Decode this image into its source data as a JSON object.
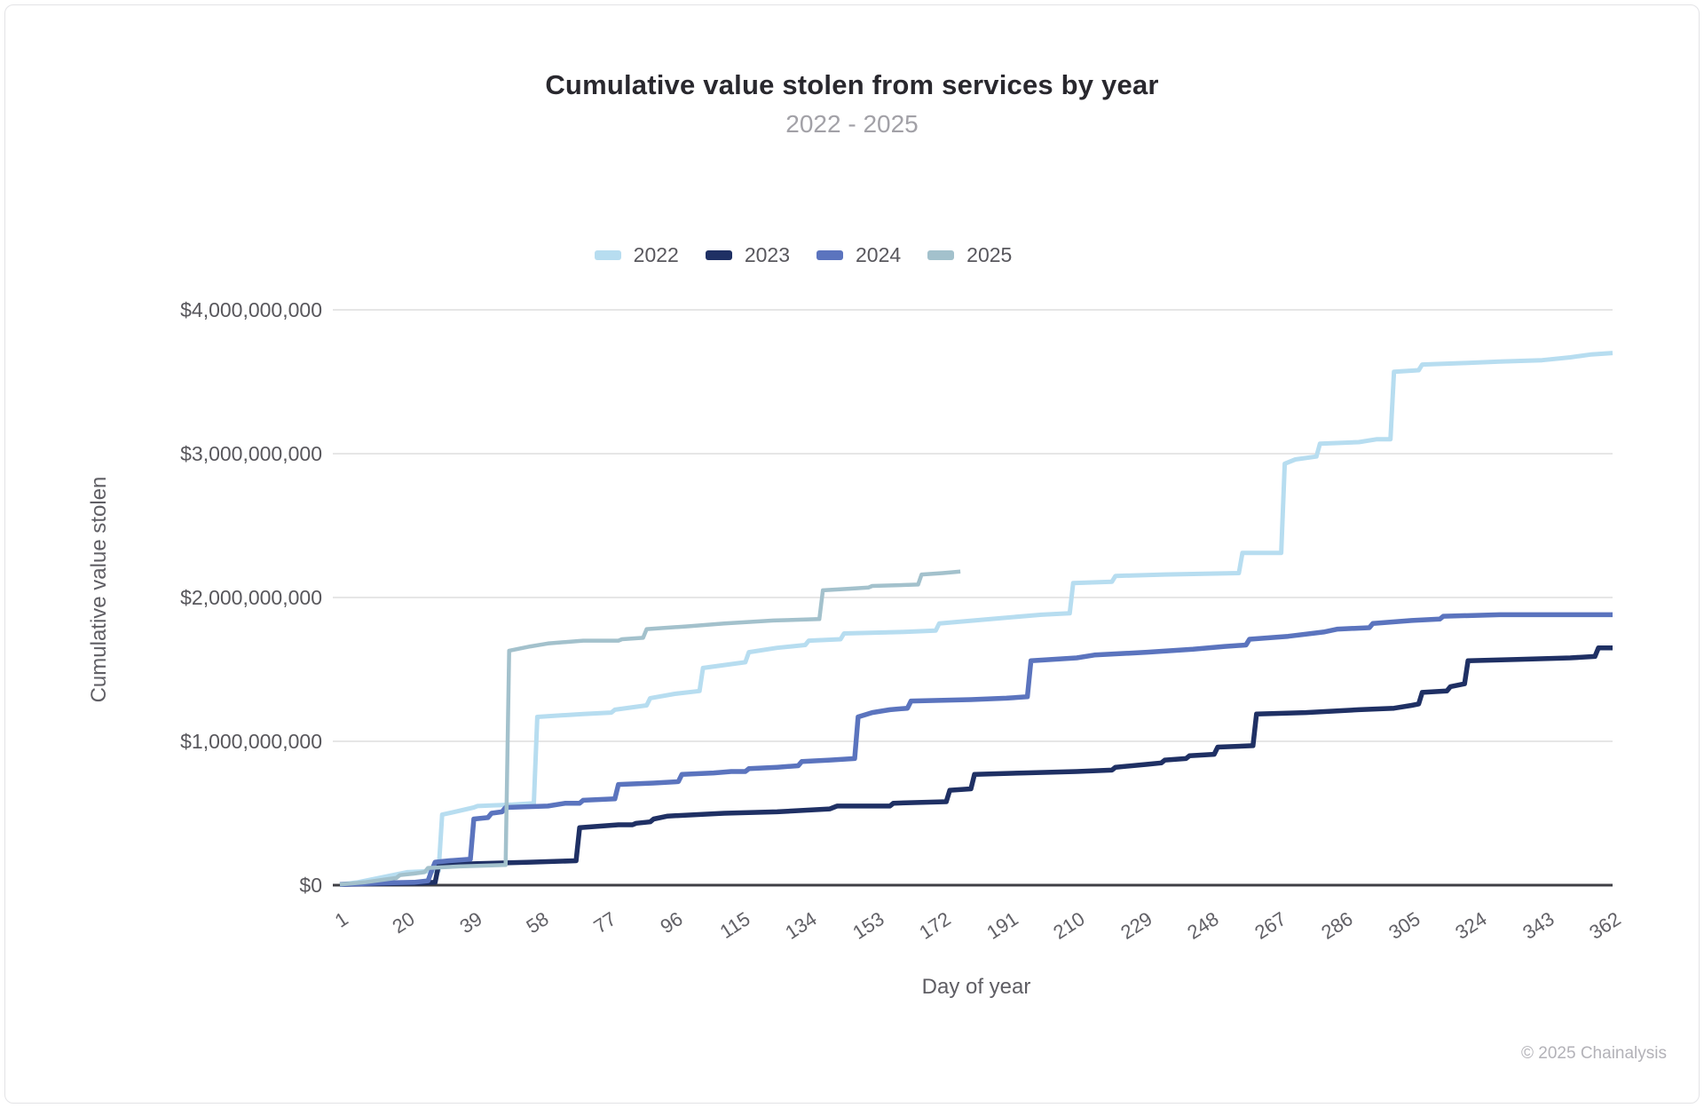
{
  "page": {
    "footer": "© 2025 Chainalysis"
  },
  "chart_data": {
    "type": "line",
    "title": "Cumulative value stolen from services by year",
    "subtitle": "2022 - 2025",
    "xlabel": "Day of year",
    "ylabel": "Cumulative value stolen",
    "legend_position": "top",
    "grid": true,
    "xlim": [
      1,
      362
    ],
    "ylim": [
      0,
      4000000000
    ],
    "x_ticks": [
      1,
      20,
      39,
      58,
      77,
      96,
      115,
      134,
      153,
      172,
      191,
      210,
      229,
      248,
      267,
      286,
      305,
      324,
      343,
      362
    ],
    "y_tick_labels": [
      "$0",
      "$1,000,000,000",
      "$2,000,000,000",
      "$3,000,000,000",
      "$4,000,000,000"
    ],
    "y_tick_values_billions": [
      0,
      1,
      2,
      3,
      4
    ],
    "values_unit": "USD_billions",
    "grid_color": "#d8d8d8",
    "axis_color": "#3f3f45",
    "series": [
      {
        "name": "2022",
        "color": "#b7ddf0",
        "line_width": 5,
        "points": [
          [
            1,
            0.005
          ],
          [
            6,
            0.02
          ],
          [
            12,
            0.05
          ],
          [
            20,
            0.09
          ],
          [
            29,
            0.1
          ],
          [
            30,
            0.49
          ],
          [
            39,
            0.54
          ],
          [
            40,
            0.55
          ],
          [
            50,
            0.56
          ],
          [
            56,
            0.57
          ],
          [
            57,
            1.17
          ],
          [
            70,
            1.19
          ],
          [
            78,
            1.2
          ],
          [
            79,
            1.22
          ],
          [
            88,
            1.25
          ],
          [
            89,
            1.3
          ],
          [
            96,
            1.33
          ],
          [
            103,
            1.35
          ],
          [
            104,
            1.51
          ],
          [
            110,
            1.53
          ],
          [
            116,
            1.55
          ],
          [
            117,
            1.62
          ],
          [
            125,
            1.65
          ],
          [
            133,
            1.67
          ],
          [
            134,
            1.7
          ],
          [
            143,
            1.71
          ],
          [
            144,
            1.75
          ],
          [
            160,
            1.76
          ],
          [
            170,
            1.77
          ],
          [
            171,
            1.82
          ],
          [
            190,
            1.86
          ],
          [
            200,
            1.88
          ],
          [
            208,
            1.89
          ],
          [
            209,
            2.1
          ],
          [
            220,
            2.11
          ],
          [
            221,
            2.15
          ],
          [
            235,
            2.16
          ],
          [
            256,
            2.17
          ],
          [
            257,
            2.31
          ],
          [
            268,
            2.31
          ],
          [
            269,
            2.93
          ],
          [
            272,
            2.96
          ],
          [
            278,
            2.98
          ],
          [
            279,
            3.07
          ],
          [
            290,
            3.08
          ],
          [
            295,
            3.1
          ],
          [
            299,
            3.1
          ],
          [
            300,
            3.57
          ],
          [
            307,
            3.58
          ],
          [
            308,
            3.62
          ],
          [
            320,
            3.63
          ],
          [
            330,
            3.64
          ],
          [
            342,
            3.65
          ],
          [
            350,
            3.67
          ],
          [
            356,
            3.69
          ],
          [
            362,
            3.7
          ]
        ]
      },
      {
        "name": "2023",
        "color": "#1f3064",
        "line_width": 5.5,
        "points": [
          [
            1,
            0.005
          ],
          [
            12,
            0.01
          ],
          [
            24,
            0.015
          ],
          [
            28,
            0.02
          ],
          [
            29,
            0.14
          ],
          [
            40,
            0.15
          ],
          [
            55,
            0.16
          ],
          [
            68,
            0.17
          ],
          [
            69,
            0.4
          ],
          [
            80,
            0.42
          ],
          [
            84,
            0.42
          ],
          [
            85,
            0.43
          ],
          [
            89,
            0.44
          ],
          [
            90,
            0.46
          ],
          [
            94,
            0.48
          ],
          [
            110,
            0.5
          ],
          [
            125,
            0.51
          ],
          [
            140,
            0.53
          ],
          [
            142,
            0.55
          ],
          [
            157,
            0.55
          ],
          [
            158,
            0.57
          ],
          [
            173,
            0.58
          ],
          [
            174,
            0.66
          ],
          [
            180,
            0.67
          ],
          [
            181,
            0.77
          ],
          [
            195,
            0.78
          ],
          [
            210,
            0.79
          ],
          [
            220,
            0.8
          ],
          [
            221,
            0.82
          ],
          [
            230,
            0.84
          ],
          [
            234,
            0.85
          ],
          [
            235,
            0.87
          ],
          [
            241,
            0.88
          ],
          [
            242,
            0.9
          ],
          [
            249,
            0.91
          ],
          [
            250,
            0.96
          ],
          [
            260,
            0.97
          ],
          [
            261,
            1.19
          ],
          [
            275,
            1.2
          ],
          [
            290,
            1.22
          ],
          [
            300,
            1.23
          ],
          [
            305,
            1.25
          ],
          [
            307,
            1.26
          ],
          [
            308,
            1.34
          ],
          [
            315,
            1.35
          ],
          [
            316,
            1.38
          ],
          [
            320,
            1.4
          ],
          [
            321,
            1.56
          ],
          [
            335,
            1.57
          ],
          [
            350,
            1.58
          ],
          [
            357,
            1.59
          ],
          [
            358,
            1.65
          ],
          [
            362,
            1.65
          ]
        ]
      },
      {
        "name": "2024",
        "color": "#5b74be",
        "line_width": 5.5,
        "points": [
          [
            1,
            0.005
          ],
          [
            12,
            0.015
          ],
          [
            22,
            0.02
          ],
          [
            26,
            0.03
          ],
          [
            27,
            0.1
          ],
          [
            28,
            0.16
          ],
          [
            32,
            0.17
          ],
          [
            38,
            0.18
          ],
          [
            39,
            0.46
          ],
          [
            43,
            0.47
          ],
          [
            44,
            0.5
          ],
          [
            47,
            0.51
          ],
          [
            48,
            0.54
          ],
          [
            60,
            0.55
          ],
          [
            65,
            0.57
          ],
          [
            69,
            0.57
          ],
          [
            70,
            0.59
          ],
          [
            79,
            0.6
          ],
          [
            80,
            0.7
          ],
          [
            90,
            0.71
          ],
          [
            97,
            0.72
          ],
          [
            98,
            0.77
          ],
          [
            107,
            0.78
          ],
          [
            112,
            0.79
          ],
          [
            116,
            0.79
          ],
          [
            117,
            0.81
          ],
          [
            125,
            0.82
          ],
          [
            131,
            0.83
          ],
          [
            132,
            0.86
          ],
          [
            140,
            0.87
          ],
          [
            147,
            0.88
          ],
          [
            148,
            1.17
          ],
          [
            152,
            1.2
          ],
          [
            157,
            1.22
          ],
          [
            162,
            1.23
          ],
          [
            163,
            1.28
          ],
          [
            180,
            1.29
          ],
          [
            190,
            1.3
          ],
          [
            196,
            1.31
          ],
          [
            197,
            1.56
          ],
          [
            210,
            1.58
          ],
          [
            215,
            1.6
          ],
          [
            230,
            1.62
          ],
          [
            243,
            1.64
          ],
          [
            252,
            1.66
          ],
          [
            258,
            1.67
          ],
          [
            259,
            1.71
          ],
          [
            270,
            1.73
          ],
          [
            280,
            1.76
          ],
          [
            284,
            1.78
          ],
          [
            293,
            1.79
          ],
          [
            294,
            1.82
          ],
          [
            305,
            1.84
          ],
          [
            313,
            1.85
          ],
          [
            314,
            1.87
          ],
          [
            330,
            1.88
          ],
          [
            362,
            1.88
          ]
        ]
      },
      {
        "name": "2025",
        "color": "#a3c1cc",
        "line_width": 4.5,
        "points": [
          [
            1,
            0.005
          ],
          [
            8,
            0.02
          ],
          [
            14,
            0.04
          ],
          [
            17,
            0.05
          ],
          [
            18,
            0.07
          ],
          [
            22,
            0.08
          ],
          [
            25,
            0.09
          ],
          [
            26,
            0.12
          ],
          [
            35,
            0.13
          ],
          [
            48,
            0.14
          ],
          [
            49,
            1.63
          ],
          [
            55,
            1.66
          ],
          [
            60,
            1.68
          ],
          [
            70,
            1.7
          ],
          [
            80,
            1.7
          ],
          [
            81,
            1.71
          ],
          [
            87,
            1.72
          ],
          [
            88,
            1.78
          ],
          [
            100,
            1.8
          ],
          [
            110,
            1.82
          ],
          [
            124,
            1.84
          ],
          [
            137,
            1.85
          ],
          [
            138,
            2.05
          ],
          [
            145,
            2.06
          ],
          [
            151,
            2.07
          ],
          [
            152,
            2.08
          ],
          [
            165,
            2.09
          ],
          [
            166,
            2.16
          ],
          [
            172,
            2.17
          ],
          [
            177,
            2.18
          ]
        ]
      }
    ]
  }
}
